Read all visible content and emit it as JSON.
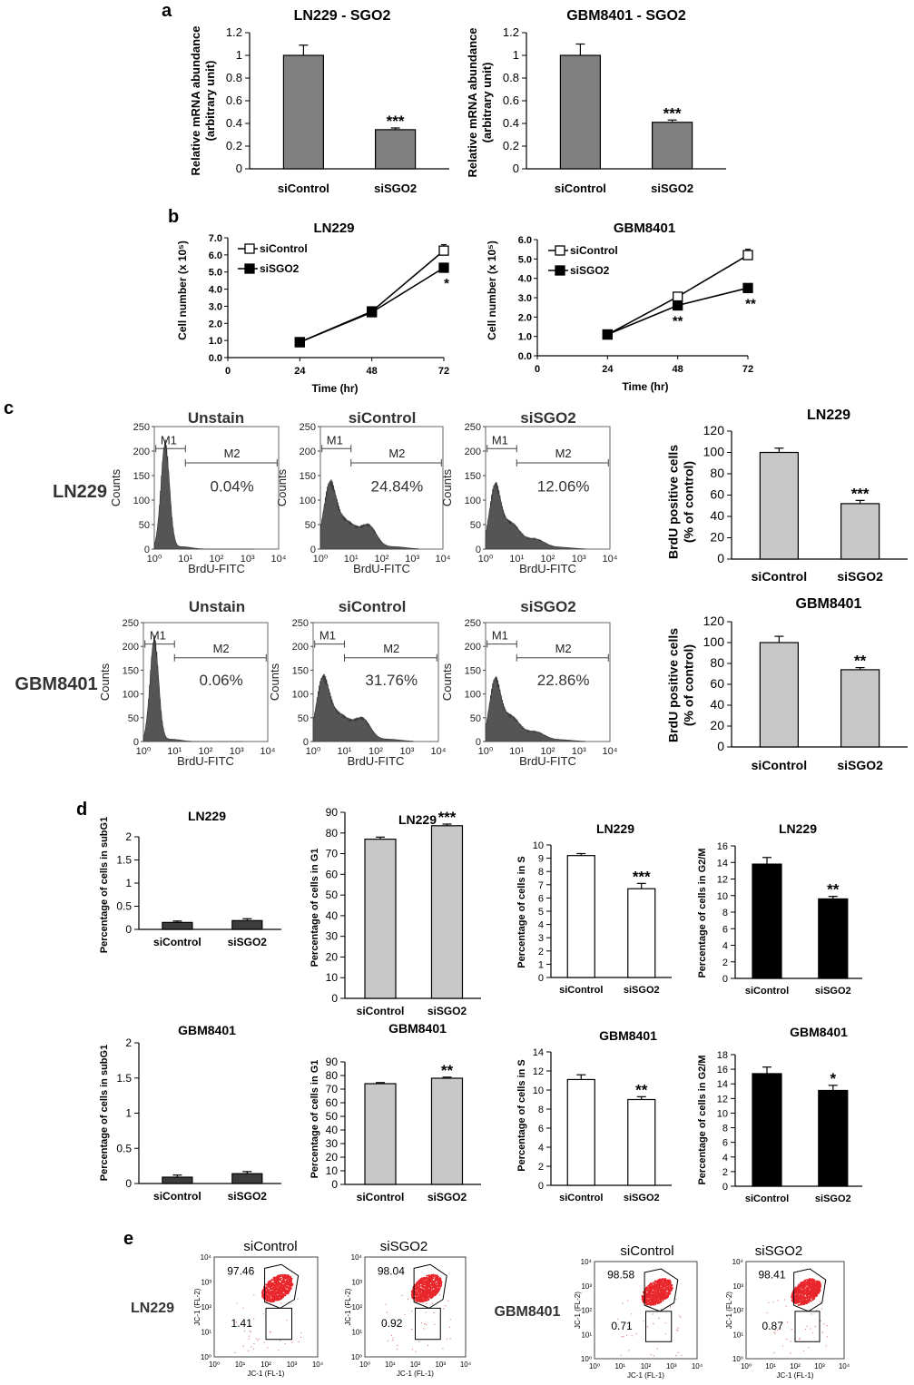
{
  "panels": {
    "a": "a",
    "b": "b",
    "c": "c",
    "d": "d",
    "e": "e"
  },
  "chart_data": [
    {
      "id": "a1",
      "type": "bar",
      "title": "LN229 - SGO2",
      "ylabel": [
        "Relative mRNA abundance",
        "(arbitrary unit)"
      ],
      "categories": [
        "siControl",
        "siSGO2"
      ],
      "values": [
        1.0,
        0.345
      ],
      "errors": [
        0.09,
        0.015
      ],
      "sig": [
        "",
        "***"
      ],
      "ylim": [
        0,
        1.2
      ],
      "yticks": [
        0,
        0.2,
        0.4,
        0.6,
        0.8,
        1,
        1.2
      ],
      "yticklabels": [
        "0",
        "0.2",
        "0.4",
        "0.6",
        "0.8",
        "1",
        "1.2"
      ],
      "color": "#808080"
    },
    {
      "id": "a2",
      "type": "bar",
      "title": "GBM8401 - SGO2",
      "ylabel": [
        "Relative mRNA abundance",
        "(arbitrary unit)"
      ],
      "categories": [
        "siControl",
        "siSGO2"
      ],
      "values": [
        1.0,
        0.41
      ],
      "errors": [
        0.1,
        0.02
      ],
      "sig": [
        "",
        "***"
      ],
      "ylim": [
        0,
        1.2
      ],
      "yticks": [
        0,
        0.2,
        0.4,
        0.6,
        0.8,
        1,
        1.2
      ],
      "yticklabels": [
        "0",
        "0.2",
        "0.4",
        "0.6",
        "0.8",
        "1",
        "1.2"
      ],
      "color": "#808080"
    },
    {
      "id": "b1",
      "type": "line",
      "title": "LN229",
      "xlabel": "Time (hr)",
      "ylabel": "Cell number (x 10⁵)",
      "x": [
        24,
        48,
        72
      ],
      "xticks": [
        0,
        24,
        48,
        72
      ],
      "xlim": [
        0,
        72
      ],
      "ylim": [
        0,
        7
      ],
      "yticks": [
        0,
        1,
        2,
        3,
        4,
        5,
        6,
        7
      ],
      "yticklabels": [
        "0.0",
        "1.0",
        "2.0",
        "3.0",
        "4.0",
        "5.0",
        "6.0",
        "7.0"
      ],
      "series": [
        {
          "name": "siControl",
          "values": [
            0.9,
            2.7,
            6.25
          ],
          "errors": [
            0.05,
            0.1,
            0.35
          ],
          "marker": "open-square",
          "sig": [
            "",
            "",
            ""
          ]
        },
        {
          "name": "siSGO2",
          "values": [
            0.9,
            2.65,
            5.25
          ],
          "errors": [
            0.05,
            0.1,
            0.15
          ],
          "marker": "filled-square",
          "sig": [
            "",
            "",
            "*"
          ]
        }
      ]
    },
    {
      "id": "b2",
      "type": "line",
      "title": "GBM8401",
      "xlabel": "Time (hr)",
      "ylabel": "Cell number (x 10⁵)",
      "x": [
        24,
        48,
        72
      ],
      "xticks": [
        0,
        24,
        48,
        72
      ],
      "xlim": [
        0,
        72
      ],
      "ylim": [
        0,
        6
      ],
      "yticks": [
        0,
        1,
        2,
        3,
        4,
        5,
        6
      ],
      "yticklabels": [
        "0.0",
        "1.0",
        "2.0",
        "3.0",
        "4.0",
        "5.0",
        "6.0"
      ],
      "series": [
        {
          "name": "siControl",
          "values": [
            1.1,
            3.05,
            5.2
          ],
          "errors": [
            0.05,
            0.1,
            0.3
          ],
          "marker": "open-square",
          "sig": [
            "",
            "",
            ""
          ]
        },
        {
          "name": "siSGO2",
          "values": [
            1.1,
            2.6,
            3.5
          ],
          "errors": [
            0.05,
            0.1,
            0.1
          ],
          "marker": "filled-square",
          "sig": [
            "",
            "**",
            "**"
          ]
        }
      ]
    },
    {
      "id": "c_h1",
      "type": "histogram",
      "row_label": "LN229",
      "title": "Unstain",
      "xlabel": "BrdU-FITC",
      "ylabel": "Counts",
      "gate1": "M1",
      "gate2": "M2",
      "percent": "0.04%",
      "profile": "unstain",
      "yticks": [
        0,
        50,
        100,
        150,
        200,
        250
      ],
      "xticklabels": [
        "10⁰",
        "10¹",
        "10²",
        "10³",
        "10⁴"
      ]
    },
    {
      "id": "c_h2",
      "type": "histogram",
      "title": "siControl",
      "xlabel": "BrdU-FITC",
      "ylabel": "Counts",
      "gate1": "M1",
      "gate2": "M2",
      "percent": "24.84%",
      "profile": "control",
      "yticks": [
        0,
        50,
        100,
        150,
        200,
        250
      ],
      "xticklabels": [
        "10⁰",
        "10¹",
        "10²",
        "10³",
        "10⁴"
      ]
    },
    {
      "id": "c_h3",
      "type": "histogram",
      "title": "siSGO2",
      "xlabel": "BrdU-FITC",
      "ylabel": "Counts",
      "gate1": "M1",
      "gate2": "M2",
      "percent": "12.06%",
      "profile": "sgo2",
      "yticks": [
        0,
        50,
        100,
        150,
        200,
        250
      ],
      "xticklabels": [
        "10⁰",
        "10¹",
        "10²",
        "10³",
        "10⁴"
      ]
    },
    {
      "id": "c_h4",
      "type": "histogram",
      "row_label": "GBM8401",
      "title": "Unstain",
      "xlabel": "BrdU-FITC",
      "ylabel": "Counts",
      "gate1": "M1",
      "gate2": "M2",
      "percent": "0.06%",
      "profile": "unstain",
      "yticks": [
        0,
        50,
        100,
        150,
        200,
        250
      ],
      "xticklabels": [
        "10⁰",
        "10¹",
        "10²",
        "10³",
        "10⁴"
      ]
    },
    {
      "id": "c_h5",
      "type": "histogram",
      "title": "siControl",
      "xlabel": "BrdU-FITC",
      "ylabel": "Counts",
      "gate1": "M1",
      "gate2": "M2",
      "percent": "31.76%",
      "profile": "control",
      "yticks": [
        0,
        50,
        100,
        150,
        200,
        250
      ],
      "xticklabels": [
        "10⁰",
        "10¹",
        "10²",
        "10³",
        "10⁴"
      ]
    },
    {
      "id": "c_h6",
      "type": "histogram",
      "title": "siSGO2",
      "xlabel": "BrdU-FITC",
      "ylabel": "Counts",
      "gate1": "M1",
      "gate2": "M2",
      "percent": "22.86%",
      "profile": "sgo2",
      "yticks": [
        0,
        50,
        100,
        150,
        200,
        250
      ],
      "xticklabels": [
        "10⁰",
        "10¹",
        "10²",
        "10³",
        "10⁴"
      ]
    },
    {
      "id": "c_b1",
      "type": "bar",
      "title": "LN229",
      "ylabel": [
        "BrdU positive cells",
        "(% of control)"
      ],
      "categories": [
        "siControl",
        "siSGO2"
      ],
      "values": [
        100,
        52
      ],
      "errors": [
        4,
        3
      ],
      "sig": [
        "",
        "***"
      ],
      "ylim": [
        0,
        120
      ],
      "yticks": [
        0,
        20,
        40,
        60,
        80,
        100,
        120
      ],
      "yticklabels": [
        "0",
        "20",
        "40",
        "60",
        "80",
        "100",
        "120"
      ],
      "color": "#c8c8c8"
    },
    {
      "id": "c_b2",
      "type": "bar",
      "title": "GBM8401",
      "ylabel": [
        "BrdU positive cells",
        "(% of control)"
      ],
      "categories": [
        "siControl",
        "siSGO2"
      ],
      "values": [
        100,
        74
      ],
      "errors": [
        6,
        2
      ],
      "sig": [
        "",
        "**"
      ],
      "ylim": [
        0,
        120
      ],
      "yticks": [
        0,
        20,
        40,
        60,
        80,
        100,
        120
      ],
      "yticklabels": [
        "0",
        "20",
        "40",
        "60",
        "80",
        "100",
        "120"
      ],
      "color": "#c8c8c8"
    },
    {
      "id": "d1",
      "type": "bar",
      "title": "LN229",
      "ylabel": [
        "Percentage of cells in subG1"
      ],
      "categories": [
        "siControl",
        "siSGO2"
      ],
      "values": [
        0.15,
        0.19
      ],
      "errors": [
        0.03,
        0.04
      ],
      "sig": [
        "",
        ""
      ],
      "ylim": [
        0,
        2
      ],
      "yticks": [
        0,
        0.5,
        1,
        1.5,
        2
      ],
      "yticklabels": [
        "0",
        "0.5",
        "1",
        "1.5",
        "2"
      ],
      "color": "#3c3c3c"
    },
    {
      "id": "d2",
      "type": "bar",
      "title": "LN229",
      "ylabel": [
        "Percentage of cells in G1"
      ],
      "categories": [
        "siControl",
        "siSGO2"
      ],
      "values": [
        77,
        83.5
      ],
      "errors": [
        1,
        0.8
      ],
      "sig": [
        "",
        "***"
      ],
      "ylim": [
        0,
        90
      ],
      "yticks": [
        0,
        10,
        20,
        30,
        40,
        50,
        60,
        70,
        80,
        90
      ],
      "yticklabels": [
        "0",
        "10",
        "20",
        "30",
        "40",
        "50",
        "60",
        "70",
        "80",
        "90"
      ],
      "color": "#c8c8c8"
    },
    {
      "id": "d3",
      "type": "bar",
      "title": "LN229",
      "ylabel": [
        "Percentage of cells in S"
      ],
      "categories": [
        "siControl",
        "siSGO2"
      ],
      "values": [
        9.2,
        6.7
      ],
      "errors": [
        0.15,
        0.4
      ],
      "sig": [
        "",
        "***"
      ],
      "ylim": [
        0,
        10
      ],
      "yticks": [
        0,
        1,
        2,
        3,
        4,
        5,
        6,
        7,
        8,
        9,
        10
      ],
      "yticklabels": [
        "0",
        "1",
        "2",
        "3",
        "4",
        "5",
        "6",
        "7",
        "8",
        "9",
        "10"
      ],
      "color": "#ffffff"
    },
    {
      "id": "d4",
      "type": "bar",
      "title": "LN229",
      "ylabel": [
        "Percentage of cells in G2/M"
      ],
      "categories": [
        "siControl",
        "siSGO2"
      ],
      "values": [
        13.8,
        9.6
      ],
      "errors": [
        0.8,
        0.3
      ],
      "sig": [
        "",
        "**"
      ],
      "ylim": [
        0,
        16
      ],
      "yticks": [
        0,
        2,
        4,
        6,
        8,
        10,
        12,
        14,
        16
      ],
      "yticklabels": [
        "0",
        "2",
        "4",
        "6",
        "8",
        "10",
        "12",
        "14",
        "16"
      ],
      "color": "#000000"
    },
    {
      "id": "d5",
      "type": "bar",
      "title": "GBM8401",
      "ylabel": [
        "Percentage of cells in subG1"
      ],
      "categories": [
        "siControl",
        "siSGO2"
      ],
      "values": [
        0.09,
        0.14
      ],
      "errors": [
        0.03,
        0.03
      ],
      "sig": [
        "",
        ""
      ],
      "ylim": [
        0,
        2
      ],
      "yticks": [
        0,
        0.5,
        1,
        1.5,
        2
      ],
      "yticklabels": [
        "0",
        "0.5",
        "1",
        "1.5",
        "2"
      ],
      "color": "#3c3c3c"
    },
    {
      "id": "d6",
      "type": "bar",
      "title": "GBM8401",
      "ylabel": [
        "Percentage of cells in G1"
      ],
      "categories": [
        "siControl",
        "siSGO2"
      ],
      "values": [
        74,
        78
      ],
      "errors": [
        0.8,
        0.8
      ],
      "sig": [
        "",
        "**"
      ],
      "ylim": [
        0,
        90
      ],
      "yticks": [
        0,
        10,
        20,
        30,
        40,
        50,
        60,
        70,
        80,
        90
      ],
      "yticklabels": [
        "0",
        "10",
        "20",
        "30",
        "40",
        "50",
        "60",
        "70",
        "80",
        "90"
      ],
      "color": "#c8c8c8"
    },
    {
      "id": "d7",
      "type": "bar",
      "title": "GBM8401",
      "ylabel": [
        "Percentage of cells in S"
      ],
      "categories": [
        "siControl",
        "siSGO2"
      ],
      "values": [
        11.1,
        9.0
      ],
      "errors": [
        0.5,
        0.3
      ],
      "sig": [
        "",
        "**"
      ],
      "ylim": [
        0,
        14
      ],
      "yticks": [
        0,
        2,
        4,
        6,
        8,
        10,
        12,
        14
      ],
      "yticklabels": [
        "0",
        "2",
        "4",
        "6",
        "8",
        "10",
        "12",
        "14"
      ],
      "color": "#ffffff"
    },
    {
      "id": "d8",
      "type": "bar",
      "title": "GBM8401",
      "ylabel": [
        "Percentage of cells in G2/M"
      ],
      "categories": [
        "siControl",
        "siSGO2"
      ],
      "values": [
        15.4,
        13.1
      ],
      "errors": [
        0.9,
        0.7
      ],
      "sig": [
        "",
        "*"
      ],
      "ylim": [
        0,
        18
      ],
      "yticks": [
        0,
        2,
        4,
        6,
        8,
        10,
        12,
        14,
        16,
        18
      ],
      "yticklabels": [
        "0",
        "2",
        "4",
        "6",
        "8",
        "10",
        "12",
        "14",
        "16",
        "18"
      ],
      "color": "#000000"
    },
    {
      "id": "e1",
      "type": "scatter",
      "row_label": "LN229",
      "title": "siControl",
      "xlabel": "JC-1 (FL-1)",
      "ylabel": "JC-1 (FL-2)",
      "upper_percent": "97.46",
      "lower_percent": "1.41",
      "xticklabels": [
        "10⁰",
        "10¹",
        "10²",
        "10³",
        "10⁴"
      ],
      "yticklabels": [
        "10⁰",
        "10¹",
        "10²",
        "10³",
        "10⁴"
      ]
    },
    {
      "id": "e2",
      "type": "scatter",
      "title": "siSGO2",
      "xlabel": "JC-1 (FL-1)",
      "ylabel": "JC-1 (FL-2)",
      "upper_percent": "98.04",
      "lower_percent": "0.92",
      "xticklabels": [
        "10⁰",
        "10¹",
        "10²",
        "10³",
        "10⁴"
      ],
      "yticklabels": [
        "10⁰",
        "10¹",
        "10²",
        "10³",
        "10⁴"
      ]
    },
    {
      "id": "e3",
      "type": "scatter",
      "row_label": "GBM8401",
      "title": "siControl",
      "xlabel": "JC-1 (FL-1)",
      "ylabel": "JC-1 (FL-2)",
      "upper_percent": "98.58",
      "lower_percent": "0.71",
      "xticklabels": [
        "10⁰",
        "10¹",
        "10²",
        "10³",
        "10⁴"
      ],
      "yticklabels": [
        "10⁰",
        "10¹",
        "10²",
        "10³",
        "10⁴"
      ]
    },
    {
      "id": "e4",
      "type": "scatter",
      "title": "siSGO2",
      "xlabel": "JC-1 (FL-1)",
      "ylabel": "JC-1 (FL-2)",
      "upper_percent": "98.41",
      "lower_percent": "0.87",
      "xticklabels": [
        "10⁰",
        "10¹",
        "10²",
        "10³",
        "10⁴"
      ],
      "yticklabels": [
        "10⁰",
        "10¹",
        "10²",
        "10³",
        "10⁴"
      ]
    }
  ]
}
